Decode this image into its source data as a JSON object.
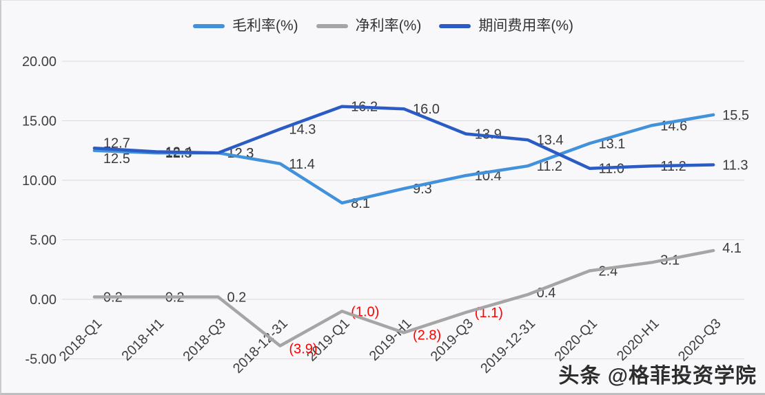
{
  "watermark": {
    "text": "头条 @格菲投资学院"
  },
  "chart_data": {
    "type": "line",
    "title": "",
    "categories": [
      "2018-Q1",
      "2018-H1",
      "2018-Q3",
      "2018-12-31",
      "2019-Q1",
      "2019-H1",
      "2019-Q3",
      "2019-12-31",
      "2020-Q1",
      "2020-H1",
      "2020-Q3"
    ],
    "series": [
      {
        "id": "gross-margin",
        "name": "毛利率(%)",
        "color": "#4191db",
        "values": [
          12.5,
          12.3,
          12.3,
          11.4,
          8.1,
          9.3,
          10.4,
          11.2,
          13.1,
          14.6,
          15.5
        ],
        "label_dy": [
          11,
          0,
          0,
          0,
          0,
          0,
          0,
          0,
          0,
          0,
          0
        ]
      },
      {
        "id": "net-margin",
        "name": "净利率(%)",
        "color": "#a5a5a5",
        "values": [
          0.2,
          0.2,
          0.2,
          -3.9,
          -1.0,
          -2.8,
          -1.1,
          0.4,
          2.4,
          3.1,
          4.1
        ],
        "label_dy": [
          0,
          0,
          0,
          4,
          0,
          3,
          0,
          -3,
          0,
          -4,
          -4
        ]
      },
      {
        "id": "expense-ratio",
        "name": "期间费用率(%)",
        "color": "#2b5cc5",
        "values": [
          12.7,
          12.4,
          12.3,
          14.3,
          16.2,
          16.0,
          13.9,
          13.4,
          11.0,
          11.2,
          11.3
        ],
        "label_dy": [
          -8,
          0,
          0,
          0,
          0,
          0,
          0,
          0,
          0,
          0,
          0
        ]
      }
    ],
    "xlabel": "",
    "ylabel": "",
    "ylim": [
      -5,
      20
    ],
    "y_ticks": [
      20,
      15,
      10,
      5,
      0,
      -5
    ],
    "y_tick_labels": [
      "20.00",
      "15.00",
      "10.00",
      "5.00",
      "0.00",
      "-5.00"
    ],
    "grid": true,
    "legend_position": "top",
    "label_color": "#3b3b3b",
    "negative_label_color": "#ff0000",
    "axis_text_color": "#3f3f3f",
    "gridline_color": "#dadada"
  }
}
